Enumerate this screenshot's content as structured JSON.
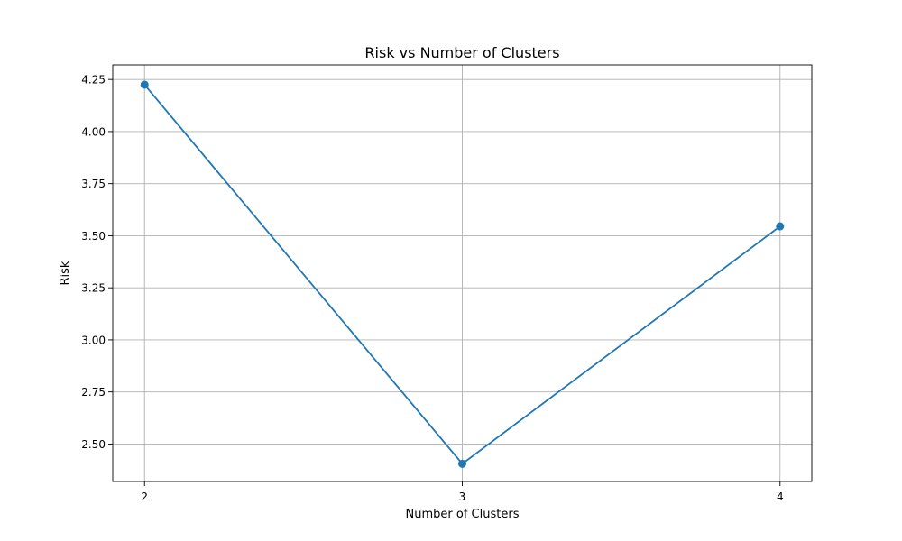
{
  "chart_data": {
    "type": "line",
    "title": "Risk vs Number of Clusters",
    "xlabel": "Number of Clusters",
    "ylabel": "Risk",
    "x": [
      2,
      3,
      4
    ],
    "x_ticks": [
      "2",
      "3",
      "4"
    ],
    "y_ticks": [
      "2.50",
      "2.75",
      "3.00",
      "3.25",
      "3.50",
      "3.75",
      "4.00",
      "4.25"
    ],
    "xlim": [
      1.9,
      4.1
    ],
    "ylim": [
      2.32,
      4.32
    ],
    "grid": true,
    "series": [
      {
        "values": [
          4.225,
          2.405,
          3.545
        ],
        "color": "#1f77b4",
        "marker": "circle"
      }
    ]
  }
}
